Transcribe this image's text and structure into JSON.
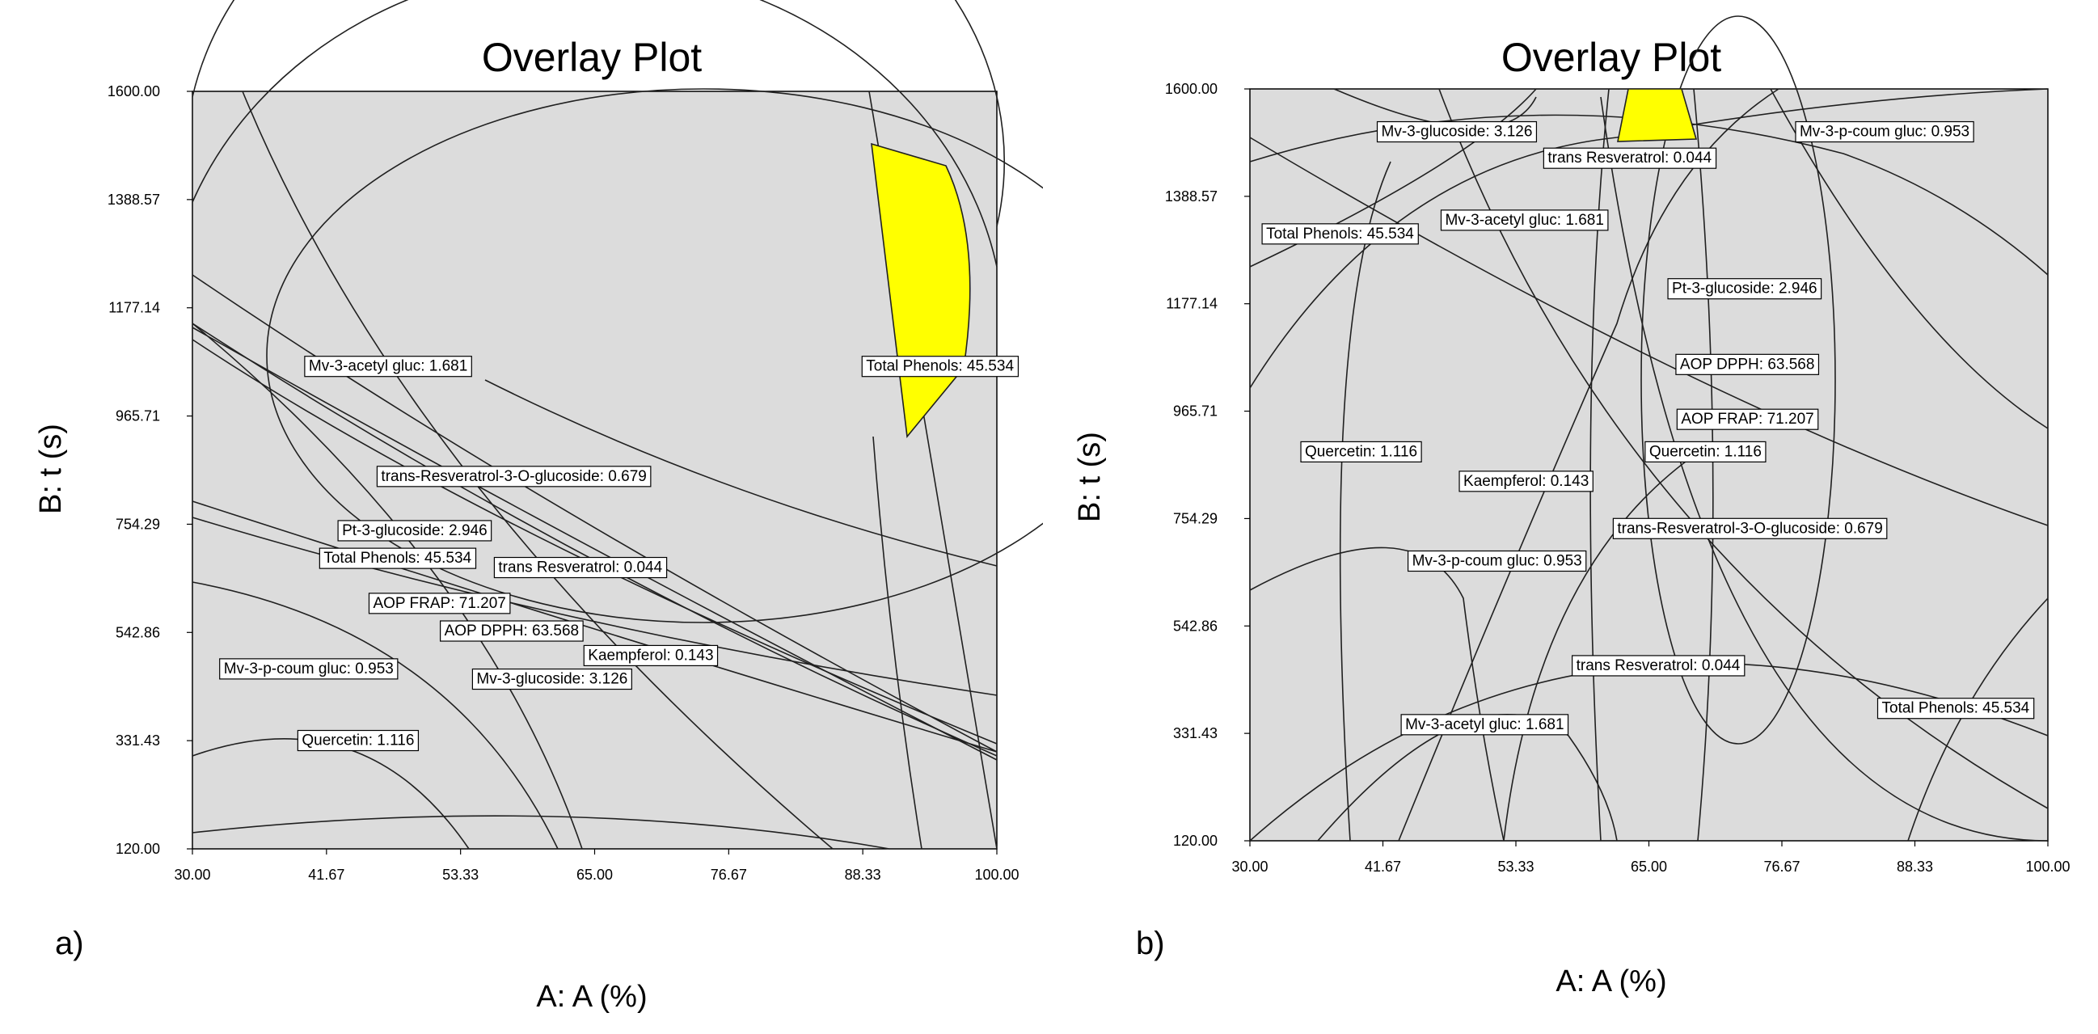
{
  "chart_data": [
    {
      "type": "overlay-contour",
      "panel": "a)",
      "title": "Overlay Plot",
      "xlabel": "A: A (%)",
      "ylabel": "B: t (s)",
      "xlim": [
        30,
        100
      ],
      "ylim": [
        120,
        1600
      ],
      "x_ticks": [
        "30.00",
        "41.67",
        "53.33",
        "65.00",
        "76.67",
        "88.33",
        "100.00"
      ],
      "y_ticks": [
        "1600.00",
        "1388.57",
        "1177.14",
        "965.71",
        "754.29",
        "542.86",
        "331.43",
        "120.00"
      ],
      "highlight_color": "#ffff00",
      "flags": [
        {
          "text": "Total Phenols: 45.534",
          "x": 88.2,
          "y": 1065
        },
        {
          "text": "Mv-3-acetyl gluc: 1.681",
          "x": 39.7,
          "y": 1065
        },
        {
          "text": "trans-Resveratrol-3-O-glucoside: 0.679",
          "x": 46.0,
          "y": 850
        },
        {
          "text": "Pt-3-glucoside: 2.946",
          "x": 42.6,
          "y": 744
        },
        {
          "text": "Total Phenols: 45.534",
          "x": 41.0,
          "y": 690
        },
        {
          "text": "trans Resveratrol: 0.044",
          "x": 56.2,
          "y": 672
        },
        {
          "text": "AOP FRAP: 71.207",
          "x": 45.3,
          "y": 602
        },
        {
          "text": "AOP DPPH: 63.568",
          "x": 51.5,
          "y": 548
        },
        {
          "text": "Kaempferol: 0.143",
          "x": 64.0,
          "y": 500
        },
        {
          "text": "Mv-3-p-coum gluc: 0.953",
          "x": 32.3,
          "y": 474
        },
        {
          "text": "Mv-3-glucoside: 3.126",
          "x": 54.3,
          "y": 454
        },
        {
          "text": "Quercetin: 1.116",
          "x": 39.1,
          "y": 334
        }
      ]
    },
    {
      "type": "overlay-contour",
      "panel": "b)",
      "title": "Overlay Plot",
      "xlabel": "A: A (%)",
      "ylabel": "B: t (s)",
      "xlim": [
        30,
        100
      ],
      "ylim": [
        120,
        1600
      ],
      "x_ticks": [
        "30.00",
        "41.67",
        "53.33",
        "65.00",
        "76.67",
        "88.33",
        "100.00"
      ],
      "y_ticks": [
        "1600.00",
        "1388.57",
        "1177.14",
        "965.71",
        "754.29",
        "542.86",
        "331.43",
        "120.00"
      ],
      "highlight_color": "#ffff00",
      "flags": [
        {
          "text": "Mv-3-glucoside: 3.126",
          "x": 41.1,
          "y": 1518
        },
        {
          "text": "Mv-3-p-coum gluc: 0.953",
          "x": 77.8,
          "y": 1518
        },
        {
          "text": "trans Resveratrol: 0.044",
          "x": 55.7,
          "y": 1466
        },
        {
          "text": "Mv-3-acetyl gluc: 1.681",
          "x": 46.7,
          "y": 1344
        },
        {
          "text": "Total Phenols: 45.534",
          "x": 31.0,
          "y": 1317
        },
        {
          "text": "Pt-3-glucoside: 2.946",
          "x": 66.6,
          "y": 1209
        },
        {
          "text": "AOP DPPH: 63.568",
          "x": 67.3,
          "y": 1060
        },
        {
          "text": "AOP FRAP: 71.207",
          "x": 67.4,
          "y": 952
        },
        {
          "text": "Quercetin: 1.116",
          "x": 34.4,
          "y": 888
        },
        {
          "text": "Quercetin: 1.116",
          "x": 64.6,
          "y": 888
        },
        {
          "text": "Kaempferol: 0.143",
          "x": 48.3,
          "y": 830
        },
        {
          "text": "trans-Resveratrol-3-O-glucoside: 0.679",
          "x": 61.8,
          "y": 737
        },
        {
          "text": "Mv-3-p-coum gluc: 0.953",
          "x": 43.8,
          "y": 673
        },
        {
          "text": "trans Resveratrol: 0.044",
          "x": 58.2,
          "y": 467
        },
        {
          "text": "Total Phenols: 45.534",
          "x": 85.0,
          "y": 383
        },
        {
          "text": "Mv-3-acetyl gluc: 1.681",
          "x": 43.2,
          "y": 351
        }
      ]
    }
  ]
}
